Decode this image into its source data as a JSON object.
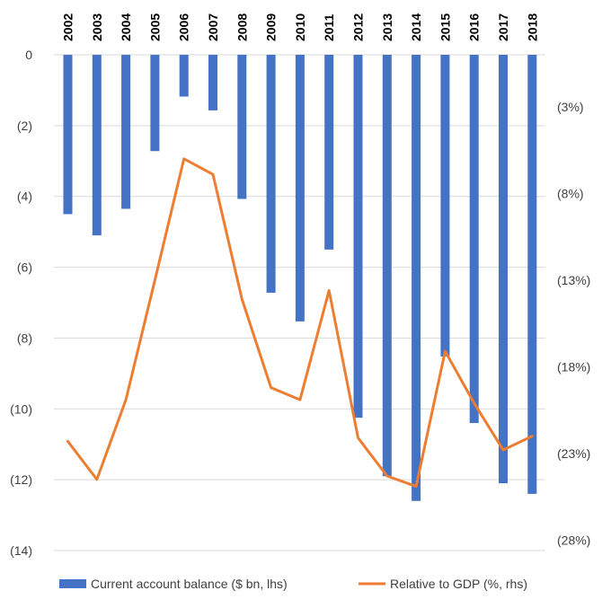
{
  "chart_data": {
    "type": "bar+line",
    "title": "",
    "categories": [
      "2002",
      "2003",
      "2004",
      "2005",
      "2006",
      "2007",
      "2008",
      "2009",
      "2010",
      "2011",
      "2012",
      "2013",
      "2014",
      "2015",
      "2016",
      "2017",
      "2018"
    ],
    "series": [
      {
        "name": "Current account balance ($ bn, lhs)",
        "type": "bar",
        "axis": "left",
        "color": "#4472C4",
        "values": [
          -4.5,
          -5.1,
          -4.35,
          -2.72,
          -1.18,
          -1.57,
          -4.07,
          -6.72,
          -7.53,
          -5.5,
          -10.25,
          -11.9,
          -12.6,
          -8.52,
          -10.4,
          -12.1,
          -12.4
        ]
      },
      {
        "name": "Relative to GDP (%, rhs)",
        "type": "line",
        "axis": "right",
        "color": "#ED7D31",
        "values": [
          -22.3,
          -24.5,
          -19.9,
          -13.0,
          -6.0,
          -6.9,
          -14.1,
          -19.2,
          -19.9,
          -13.6,
          -22.1,
          -24.3,
          -24.9,
          -17.1,
          -20.1,
          -22.8,
          -22.0
        ]
      }
    ],
    "left_axis": {
      "range": [
        -14,
        0
      ],
      "ticks": [
        0,
        -2,
        -4,
        -6,
        -8,
        -10,
        -12,
        -14
      ],
      "tick_labels": [
        "0",
        "(2)",
        "(4)",
        "(6)",
        "(8)",
        "(10)",
        "(12)",
        "(14)"
      ]
    },
    "right_axis": {
      "range": [
        -28.6,
        0
      ],
      "ticks": [
        -3,
        -8,
        -13,
        -18,
        -23,
        -28
      ],
      "tick_labels": [
        "(3%)",
        "(8%)",
        "(13%)",
        "(18%)",
        "(23%)",
        "(28%)"
      ]
    },
    "x_axis_position": "top",
    "grid": true,
    "legend_position": "bottom"
  },
  "legend": {
    "bar_label": "Current account balance ($ bn, lhs)",
    "line_label": "Relative to GDP (%, rhs)"
  }
}
